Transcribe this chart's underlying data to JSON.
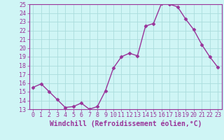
{
  "x": [
    0,
    1,
    2,
    3,
    4,
    5,
    6,
    7,
    8,
    9,
    10,
    11,
    12,
    13,
    14,
    15,
    16,
    17,
    18,
    19,
    20,
    21,
    22,
    23
  ],
  "y": [
    15.5,
    15.9,
    15.0,
    14.1,
    13.2,
    13.3,
    13.7,
    13.0,
    13.3,
    15.1,
    17.7,
    19.0,
    19.4,
    19.1,
    22.5,
    22.8,
    25.1,
    25.0,
    24.7,
    23.3,
    22.1,
    20.4,
    19.0,
    17.8
  ],
  "line_color": "#993399",
  "marker": "D",
  "markersize": 2.5,
  "linewidth": 1.0,
  "xlabel": "Windchill (Refroidissement éolien,°C)",
  "ylim": [
    13,
    25
  ],
  "xlim": [
    -0.5,
    23.5
  ],
  "yticks": [
    13,
    14,
    15,
    16,
    17,
    18,
    19,
    20,
    21,
    22,
    23,
    24,
    25
  ],
  "xticks": [
    0,
    1,
    2,
    3,
    4,
    5,
    6,
    7,
    8,
    9,
    10,
    11,
    12,
    13,
    14,
    15,
    16,
    17,
    18,
    19,
    20,
    21,
    22,
    23
  ],
  "bg_color": "#cff5f5",
  "grid_color": "#aadddd",
  "tick_color": "#993399",
  "label_color": "#993399",
  "xlabel_fontsize": 7,
  "tick_fontsize": 6,
  "ylabel_fontsize": 6
}
